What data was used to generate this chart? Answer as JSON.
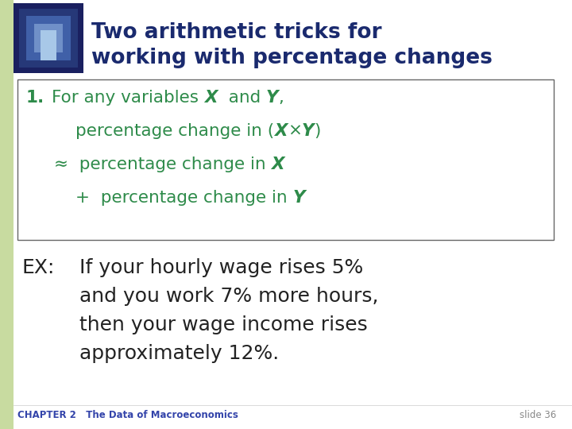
{
  "slide_bg": "#ffffff",
  "title_line1": "Two arithmetic tricks for",
  "title_line2": "working with percentage changes",
  "title_color": "#1a2a6e",
  "green_color": "#2e8b4a",
  "dark_text": "#222222",
  "chapter_color": "#3344aa",
  "left_bar_color": "#c8dba0",
  "box_border_color": "#666666",
  "chapter_text": "CHAPTER 2   The Data of Macroeconomics",
  "slide_text": "slide 36",
  "ex_label": "EX:",
  "ex_line1": "If your hourly wage rises 5%",
  "ex_line2": "and you work 7% more hours,",
  "ex_line3": "then your wage income rises",
  "ex_line4": "approximately 12%.",
  "img_outer": "#1a2060",
  "img_mid": "#263878",
  "img_inner": "#4060a8",
  "img_center": "#7090c8"
}
